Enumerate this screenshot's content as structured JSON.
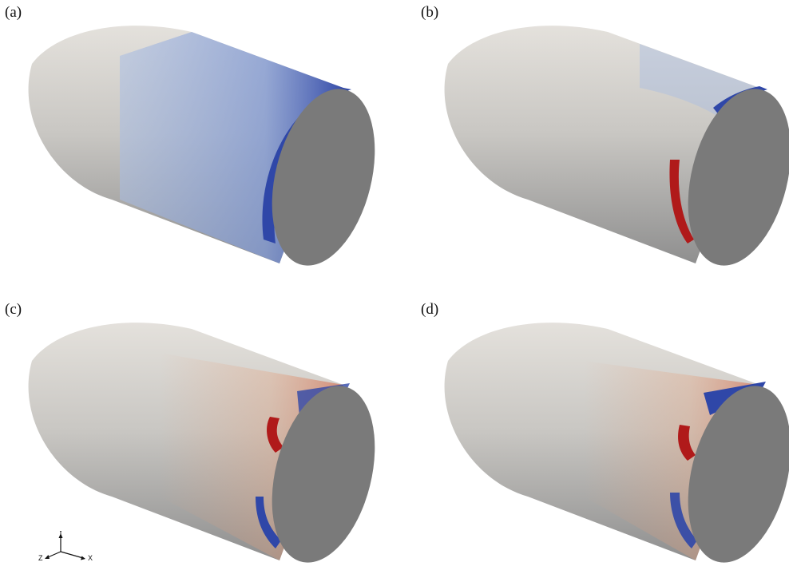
{
  "panels": [
    {
      "id": "a",
      "label": "(a)"
    },
    {
      "id": "b",
      "label": "(b)"
    },
    {
      "id": "c",
      "label": "(c)"
    },
    {
      "id": "d",
      "label": "(d)"
    }
  ],
  "triad": {
    "y_label": "Y",
    "z_label": "Z",
    "x_label": "X"
  },
  "colors": {
    "base": "#c8c6c2",
    "cap": "#7a7a7a",
    "blue": "#2f47a8",
    "light_blue": "#a9bde3",
    "red": "#b01a1a",
    "orange": "#e3a27f"
  }
}
